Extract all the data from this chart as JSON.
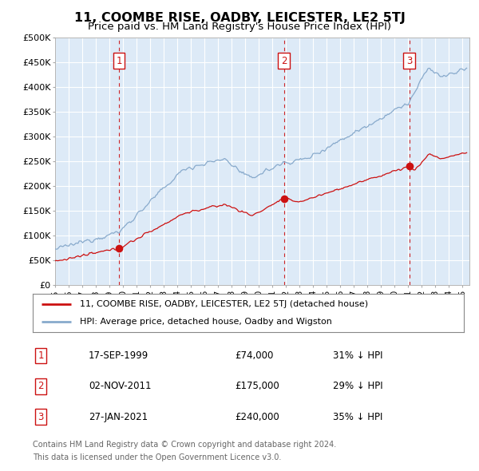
{
  "title": "11, COOMBE RISE, OADBY, LEICESTER, LE2 5TJ",
  "subtitle": "Price paid vs. HM Land Registry's House Price Index (HPI)",
  "title_fontsize": 11.5,
  "subtitle_fontsize": 9.5,
  "bg_color": "#ddeaf7",
  "grid_color": "#ffffff",
  "ylim": [
    0,
    500000
  ],
  "yticks": [
    0,
    50000,
    100000,
    150000,
    200000,
    250000,
    300000,
    350000,
    400000,
    450000,
    500000
  ],
  "ytick_labels": [
    "£0",
    "£50K",
    "£100K",
    "£150K",
    "£200K",
    "£250K",
    "£300K",
    "£350K",
    "£400K",
    "£450K",
    "£500K"
  ],
  "xlim_start": 1995.0,
  "xlim_end": 2025.5,
  "sale_dates": [
    1999.71,
    2011.84,
    2021.07
  ],
  "sale_prices": [
    74000,
    175000,
    240000
  ],
  "sale_labels": [
    "1",
    "2",
    "3"
  ],
  "sale_info": [
    {
      "label": "1",
      "date": "17-SEP-1999",
      "price": "£74,000",
      "pct": "31% ↓ HPI"
    },
    {
      "label": "2",
      "date": "02-NOV-2011",
      "price": "£175,000",
      "pct": "29% ↓ HPI"
    },
    {
      "label": "3",
      "date": "27-JAN-2021",
      "price": "£240,000",
      "pct": "35% ↓ HPI"
    }
  ],
  "red_line_color": "#cc1111",
  "blue_line_color": "#88aacc",
  "legend_label_red": "11, COOMBE RISE, OADBY, LEICESTER, LE2 5TJ (detached house)",
  "legend_label_blue": "HPI: Average price, detached house, Oadby and Wigston",
  "footer1": "Contains HM Land Registry data © Crown copyright and database right 2024.",
  "footer2": "This data is licensed under the Open Government Licence v3.0."
}
